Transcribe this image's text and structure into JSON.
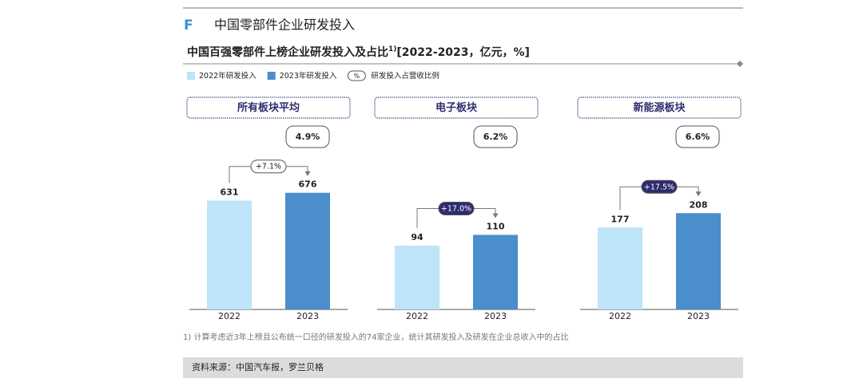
{
  "section": {
    "letter": "F",
    "title": "中国零部件企业研发投入"
  },
  "subtitle": {
    "text": "中国百强零部件上榜企业研发投入及占比",
    "note": "1)",
    "units": "[2022-2023，亿元，%]"
  },
  "legend": {
    "items": [
      {
        "name": "2022年研发投入",
        "color": "#bde4f8"
      },
      {
        "name": "2023年研发投入",
        "color": "#4a8ecb"
      },
      {
        "name": "研发投入占营收比例",
        "symbol": "%"
      }
    ]
  },
  "chart_data": [
    {
      "type": "bar",
      "title": "所有板块平均",
      "categories": [
        "2022",
        "2023"
      ],
      "values": [
        631,
        676
      ],
      "colors": [
        "#bde4f8",
        "#4a8ecb"
      ],
      "ylim": [
        0,
        1100
      ],
      "ratio": "4.9%",
      "growth": "+7.1%",
      "growth_fill": "#ffffff"
    },
    {
      "type": "bar",
      "title": "电子板块",
      "categories": [
        "2022",
        "2023"
      ],
      "values": [
        94,
        110
      ],
      "colors": [
        "#bde4f8",
        "#4a8ecb"
      ],
      "ylim": [
        0,
        280
      ],
      "ratio": "6.2%",
      "growth": "+17.0%",
      "growth_fill": "#2e2c6e"
    },
    {
      "type": "bar",
      "title": "新能源板块",
      "categories": [
        "2022",
        "2023"
      ],
      "values": [
        177,
        208
      ],
      "colors": [
        "#bde4f8",
        "#4a8ecb"
      ],
      "ylim": [
        0,
        410
      ],
      "ratio": "6.6%",
      "growth": "+17.5%",
      "growth_fill": "#2e2c6e"
    }
  ],
  "footnote": "1) 计算考虑近3年上榜且公布统一口径的研发投入的74家企业，统计其研发投入及研发在企业总收入中的占比",
  "source": "资料来源：中国汽车报，罗兰贝格"
}
